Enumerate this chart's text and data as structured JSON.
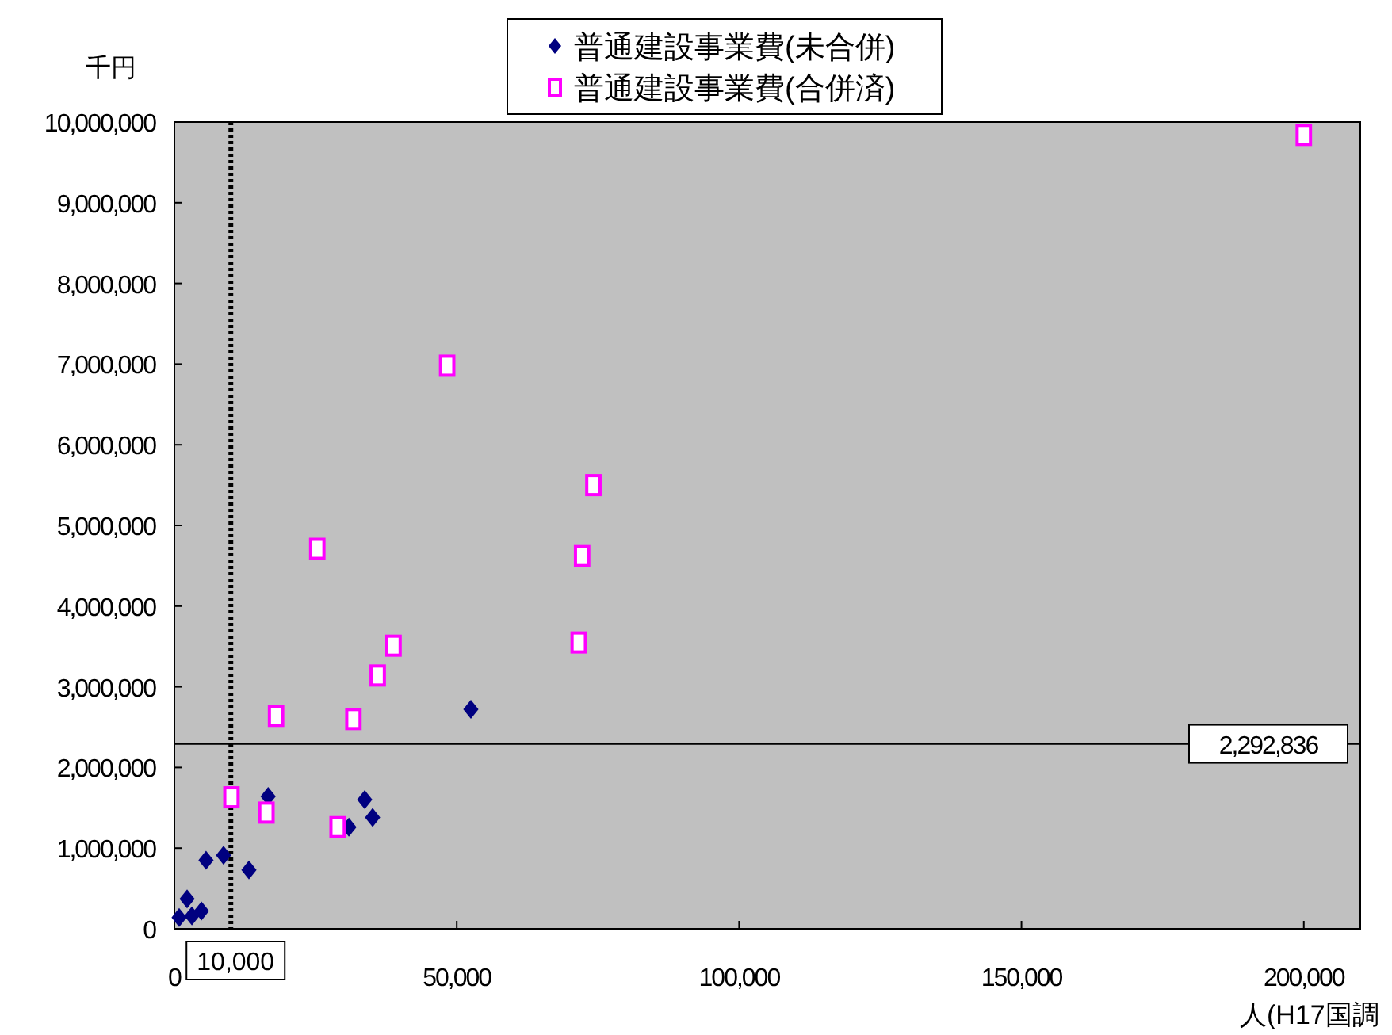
{
  "chart_data": {
    "type": "scatter",
    "ylabel": "千円",
    "xlabel": "人(H17国調",
    "legend": "top",
    "xlim": [
      0,
      210000
    ],
    "ylim": [
      0,
      10000000
    ],
    "xticks": [
      0,
      {
        "value": 50000,
        "label": "50,000"
      },
      {
        "value": 100000,
        "label": "100,000"
      },
      {
        "value": 150000,
        "label": "150,000"
      },
      {
        "value": 200000,
        "label": "200,000"
      }
    ],
    "yticks": [
      0,
      {
        "value": 1000000,
        "label": "1,000,000"
      },
      {
        "value": 2000000,
        "label": "2,000,000"
      },
      {
        "value": 3000000,
        "label": "3,000,000"
      },
      {
        "value": 4000000,
        "label": "4,000,000"
      },
      {
        "value": 5000000,
        "label": "5,000,000"
      },
      {
        "value": 6000000,
        "label": "6,000,000"
      },
      {
        "value": 7000000,
        "label": "7,000,000"
      },
      {
        "value": 8000000,
        "label": "8,000,000"
      },
      {
        "value": 9000000,
        "label": "9,000,000"
      },
      {
        "value": 10000000,
        "label": "10,000,000"
      }
    ],
    "grid": false,
    "ref_lines": [
      {
        "axis": "x",
        "value": 10000,
        "label": "10,000",
        "line_style": "dotted",
        "color": "#000000"
      },
      {
        "axis": "y",
        "value": 2292836,
        "label": "2,292,836",
        "line_style": "solid",
        "color": "#000000"
      }
    ],
    "series": [
      {
        "name": "普通建設事業費(未合併)",
        "color": "#000080",
        "marker": "diamond",
        "x": [
          52500,
          16600,
          33700,
          35100,
          30900,
          8700,
          5600,
          13200,
          2250,
          4800,
          840,
          3100
        ],
        "values": [
          2720000,
          1640000,
          1600000,
          1380000,
          1260000,
          910000,
          850000,
          730000,
          370000,
          220000,
          140000,
          160000
        ]
      },
      {
        "name": "普通建設事業費(合併済)",
        "color": "#ff00ff",
        "marker": "square",
        "x": [
          200000,
          48300,
          74200,
          72200,
          71600,
          25300,
          38800,
          36000,
          18000,
          31700,
          10100,
          16300,
          28900
        ],
        "values": [
          9840000,
          6980000,
          5500000,
          4620000,
          3550000,
          4710000,
          3510000,
          3140000,
          2640000,
          2600000,
          1630000,
          1440000,
          1260000
        ]
      }
    ]
  }
}
